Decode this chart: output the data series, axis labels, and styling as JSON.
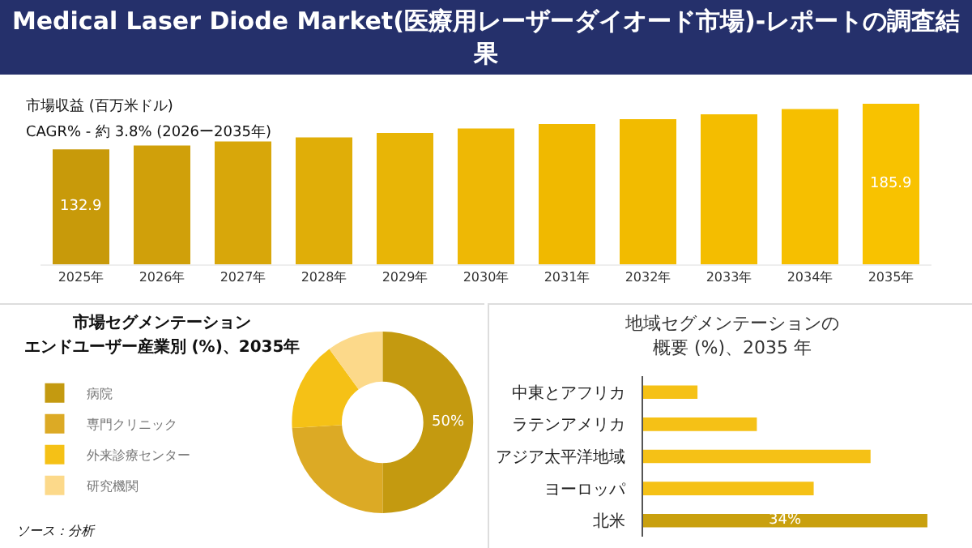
{
  "chart_data": [
    {
      "type": "bar",
      "title": "Medical Laser Diode Market(医療用レーザーダイオード市場)-レポートの調査結果",
      "ylabel": "市場収益 (百万米ドル)",
      "annotations": [
        "CAGR% - 約 3.8% (2026ー2035年)"
      ],
      "tick_labels": "x",
      "categories": [
        "2025年",
        "2026年",
        "2027年",
        "2028年",
        "2029年",
        "2030年",
        "2031年",
        "2032年",
        "2033年",
        "2034年",
        "2035年"
      ],
      "values": [
        132.9,
        137.4,
        142.1,
        146.9,
        151.9,
        157.1,
        162.4,
        168.0,
        173.7,
        179.6,
        185.9
      ],
      "value_labels": [
        "132.9",
        null,
        null,
        null,
        null,
        null,
        null,
        null,
        null,
        null,
        "185.9"
      ],
      "colors": [
        "#c89a0a",
        "#d0a00a",
        "#d8a70a",
        "#e0ae08",
        "#e8b506",
        "#eeb805",
        "#f0b900",
        "#f2bb00",
        "#f4bd00",
        "#f6bf00",
        "#f8c200"
      ]
    },
    {
      "type": "donut",
      "title": "市場セグメンテーション",
      "subtitle": "エンドユーザー産業別 (%)、2035年",
      "legend": "left",
      "annotations": [
        "ソース：分析"
      ],
      "categories": [
        "病院",
        "専門クリニック",
        "外来診療センター",
        "研究機関"
      ],
      "values": [
        50,
        24,
        16,
        10
      ],
      "value_labels": [
        "50%",
        null,
        null,
        null
      ],
      "colors": [
        "#c49a10",
        "#dcaa25",
        "#f5c116",
        "#fcd98a"
      ]
    },
    {
      "type": "bar",
      "orientation": "horizontal",
      "title": "地域セグメンテーションの概要 (%)、2035 年",
      "tick_labels": "y",
      "categories": [
        "中東とアフリカ",
        "ラテンアメリカ",
        "アジア太平洋地域",
        "ヨーロッパ",
        "北米"
      ],
      "values": [
        6.5,
        13.6,
        27.2,
        20.4,
        34
      ],
      "value_labels": [
        null,
        null,
        null,
        null,
        "34%"
      ],
      "colors": [
        "#f5c116",
        "#f5c116",
        "#f5c116",
        "#f5c116",
        "#c9a00e"
      ]
    }
  ]
}
